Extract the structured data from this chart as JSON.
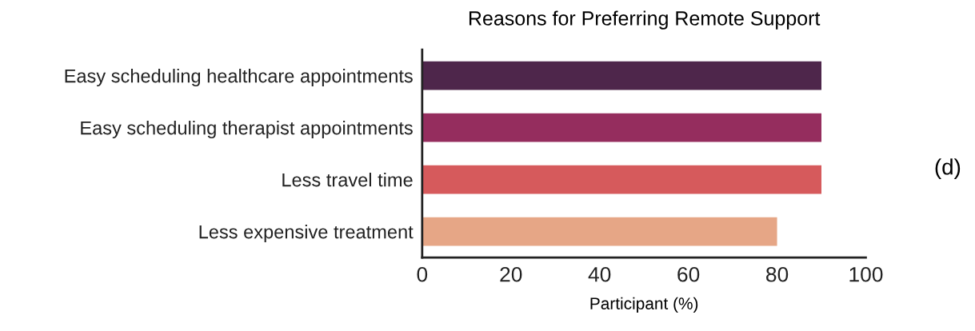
{
  "chart_data": {
    "type": "bar",
    "orientation": "horizontal",
    "title": "Reasons for Preferring Remote Support",
    "xlabel": "Participant (%)",
    "categories": [
      "Easy scheduling healthcare appointments",
      "Easy scheduling therapist appointments",
      "Less travel time",
      "Less expensive treatment"
    ],
    "values": [
      90,
      90,
      90,
      80
    ],
    "colors": [
      "#4e264b",
      "#952d5e",
      "#d65a5c",
      "#e6a686"
    ],
    "xlim": [
      0,
      100
    ],
    "xticks": [
      0,
      20,
      40,
      60,
      80,
      100
    ],
    "grid": false,
    "annotations": [
      "(d)"
    ]
  }
}
